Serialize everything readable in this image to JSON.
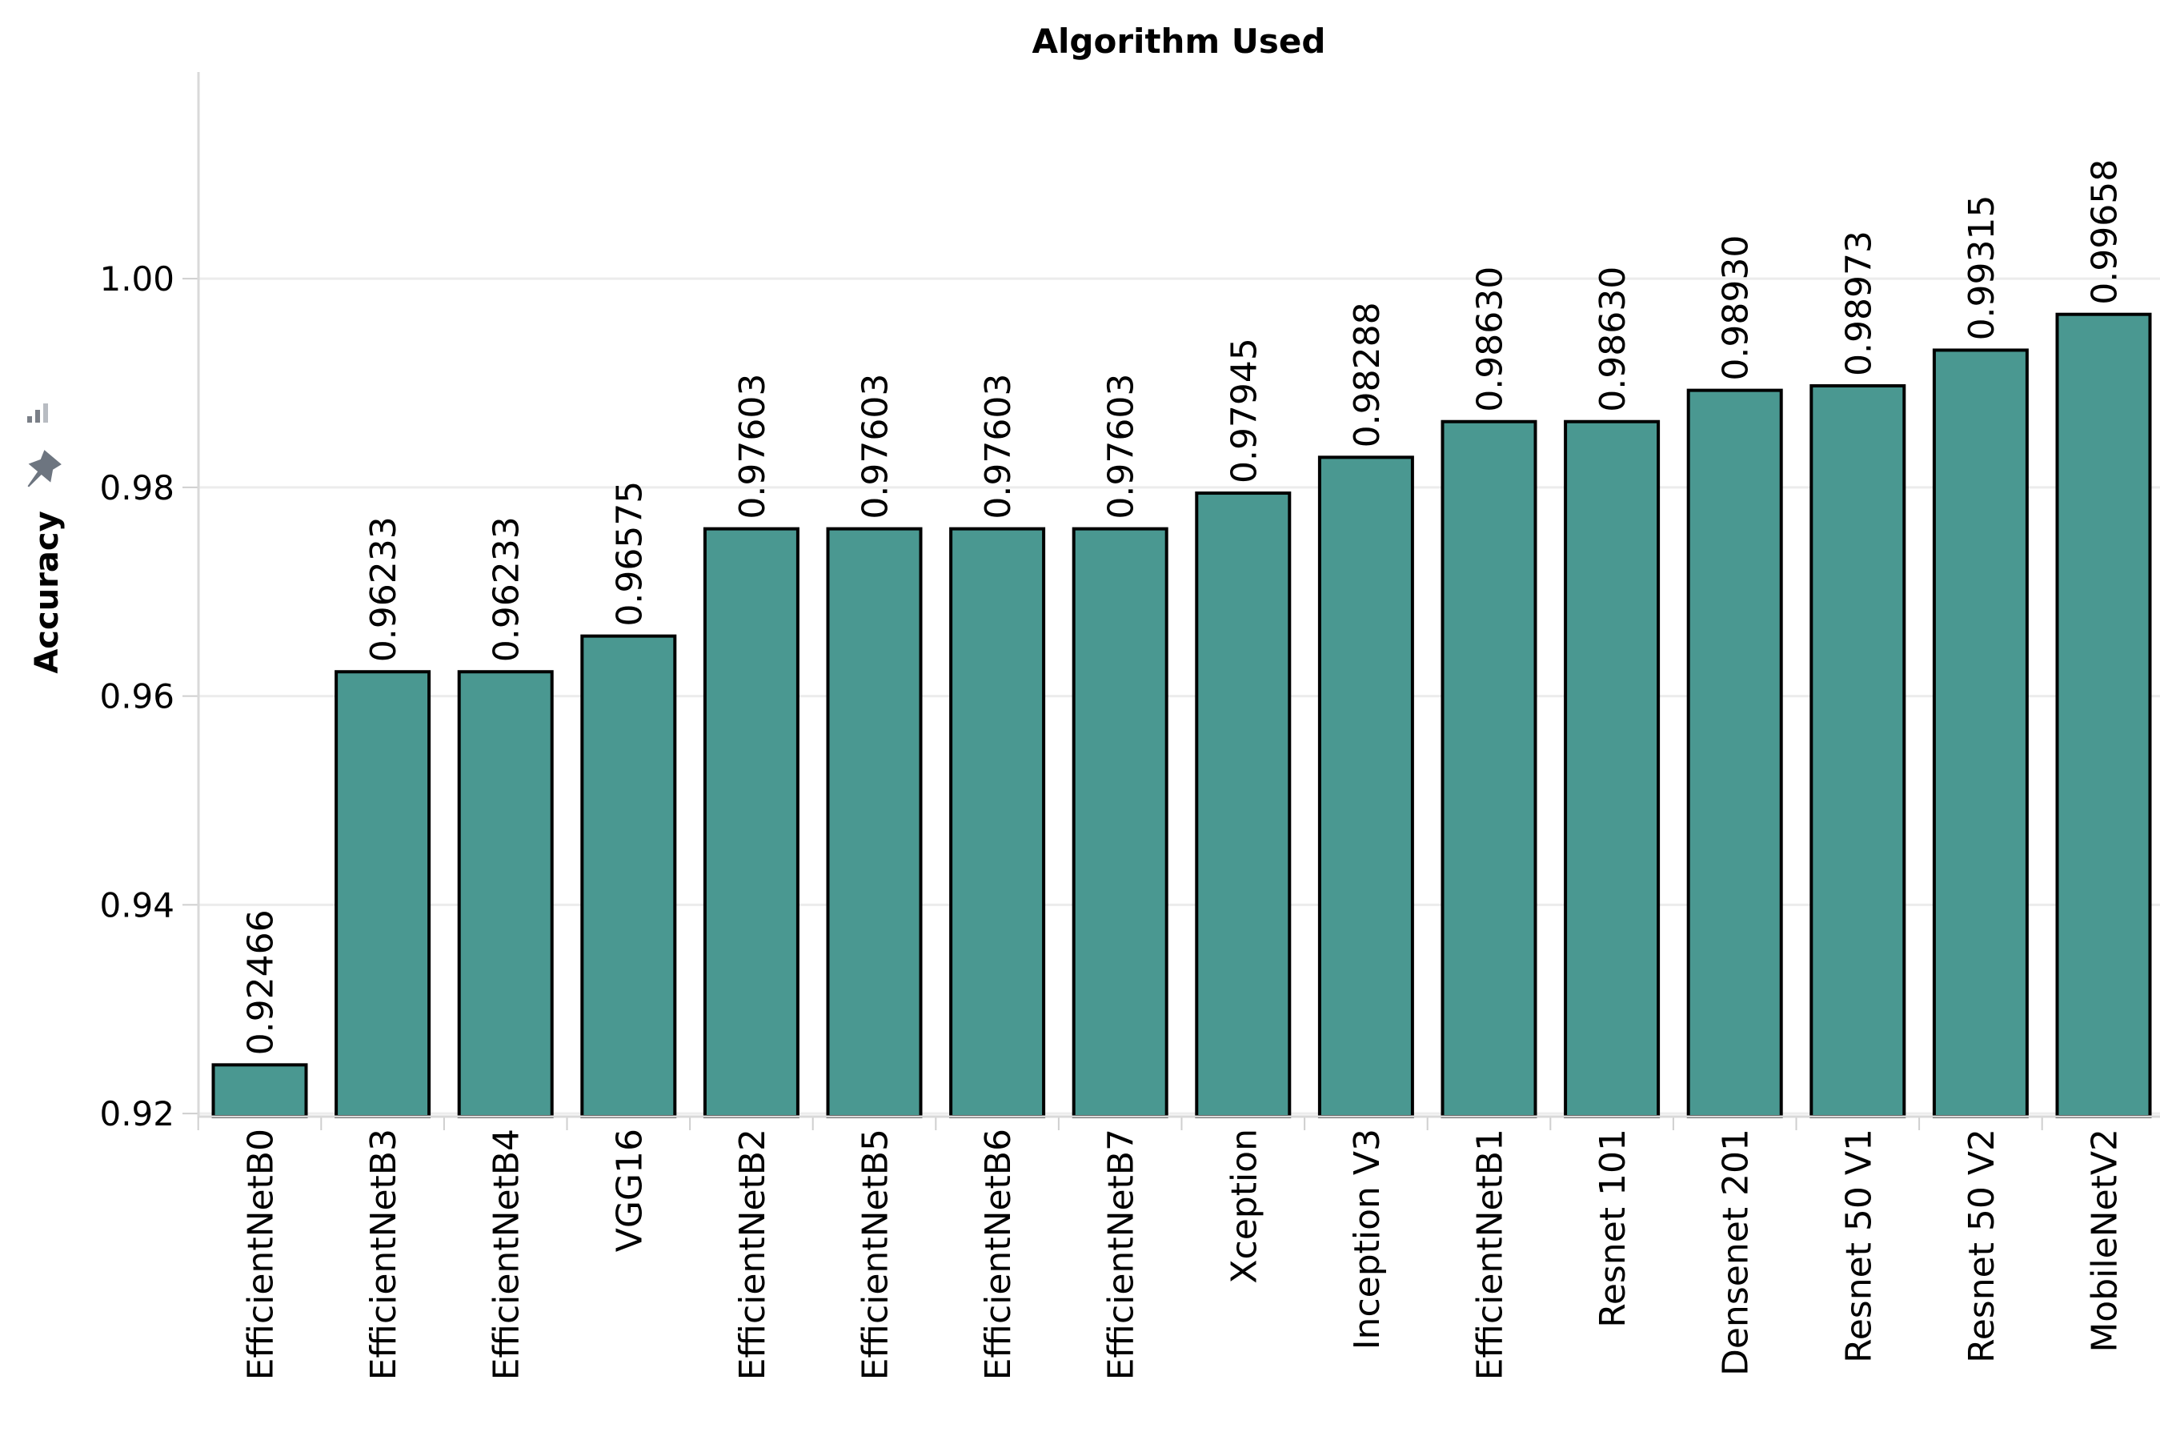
{
  "chart_data": {
    "type": "bar",
    "title": "Algorithm Used",
    "ylabel": "Accuracy",
    "xlabel": "",
    "categories": [
      "EfficientNetB0",
      "EfficientNetB3",
      "EfficientNetB4",
      "VGG16",
      "EfficientNetB2",
      "EfficientNetB5",
      "EfficientNetB6",
      "EfficientNetB7",
      "Xception",
      "Inception V3",
      "EfficientNetB1",
      "Resnet 101",
      "Densenet 201",
      "Resnet 50 V1",
      "Resnet 50 V2",
      "MobileNetV2"
    ],
    "values": [
      0.92466,
      0.96233,
      0.96233,
      0.96575,
      0.97603,
      0.97603,
      0.97603,
      0.97603,
      0.97945,
      0.98288,
      0.9863,
      0.9863,
      0.9893,
      0.98973,
      0.99315,
      0.99658
    ],
    "data_labels": [
      "0.92466",
      "0.96233",
      "0.96233",
      "0.96575",
      "0.97603",
      "0.97603",
      "0.97603",
      "0.97603",
      "0.97945",
      "0.98288",
      "0.98630",
      "0.98630",
      "0.98930",
      "0.98973",
      "0.99315",
      "0.99658"
    ],
    "yticks": [
      0.92,
      0.94,
      0.96,
      0.98,
      1.0
    ],
    "ytick_labels": [
      "0.92",
      "0.94",
      "0.96",
      "0.98",
      "1.00"
    ],
    "ylim": [
      0.9197,
      1.0198
    ],
    "grid": true,
    "bar_color": "#4a9891",
    "bar_edge_color": "#000000"
  }
}
